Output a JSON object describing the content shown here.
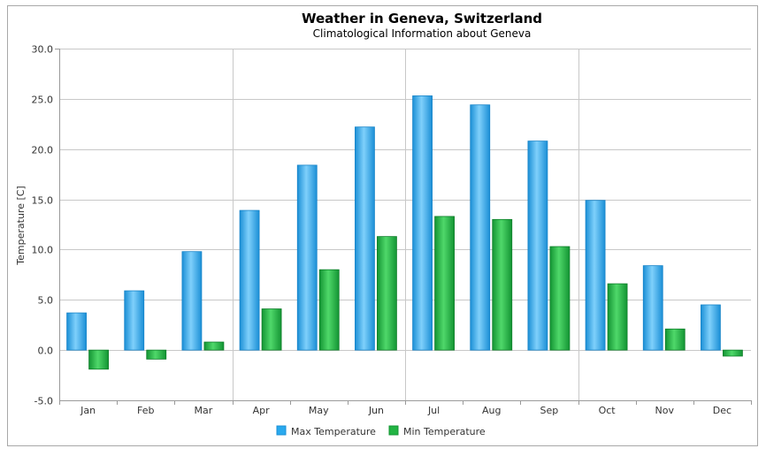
{
  "chart_data": {
    "type": "bar",
    "title": "Weather in Geneva, Switzerland",
    "subtitle": "Climatological Information about Geneva",
    "xlabel": "",
    "ylabel": "Temperature [C]",
    "ylim": [
      -5,
      30
    ],
    "yticks": [
      "30.0",
      "25.0",
      "20.0",
      "15.0",
      "10.0",
      "5.0",
      "0.0",
      "-5.0"
    ],
    "ytick_values": [
      30,
      25,
      20,
      15,
      10,
      5,
      0,
      -5
    ],
    "categories": [
      "Jan",
      "Feb",
      "Mar",
      "Apr",
      "May",
      "Jun",
      "Jul",
      "Aug",
      "Sep",
      "Oct",
      "Nov",
      "Dec"
    ],
    "series": [
      {
        "name": "Max Temperature",
        "color": "#29a9ee",
        "values": [
          3.7,
          5.9,
          9.8,
          13.9,
          18.4,
          22.2,
          25.3,
          24.4,
          20.8,
          14.9,
          8.4,
          4.5
        ]
      },
      {
        "name": "Min Temperature",
        "color": "#22b443",
        "values": [
          -1.9,
          -0.9,
          0.8,
          4.1,
          8.0,
          11.3,
          13.3,
          13.0,
          10.3,
          6.6,
          2.1,
          -0.6
        ]
      }
    ],
    "grid": true,
    "legend_position": "bottom-center"
  }
}
